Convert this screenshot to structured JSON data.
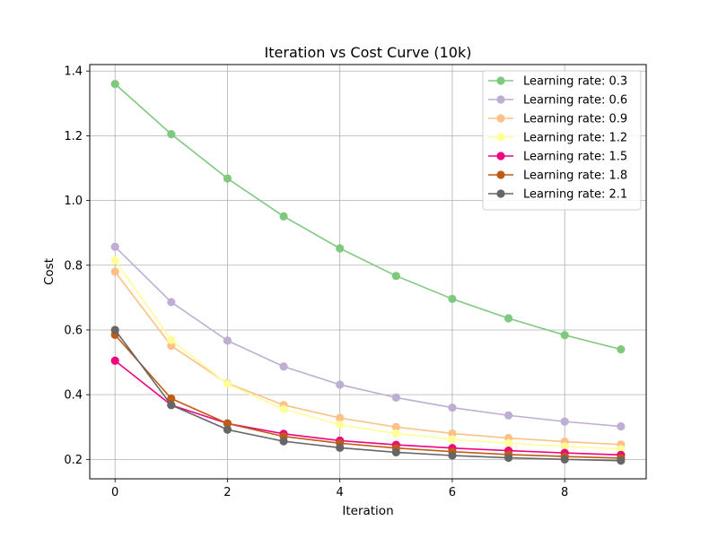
{
  "chart_data": {
    "type": "line",
    "title": "Iteration vs Cost Curve (10k)",
    "xlabel": "Iteration",
    "ylabel": "Cost",
    "x": [
      0,
      1,
      2,
      3,
      4,
      5,
      6,
      7,
      8,
      9
    ],
    "xlim": [
      -0.45,
      9.45
    ],
    "ylim": [
      0.14,
      1.42
    ],
    "xticks": [
      "0",
      "2",
      "4",
      "6",
      "8"
    ],
    "xtick_values": [
      0,
      2,
      4,
      6,
      8
    ],
    "yticks": [
      "0.2",
      "0.4",
      "0.6",
      "0.8",
      "1.0",
      "1.2",
      "1.4"
    ],
    "ytick_values": [
      0.2,
      0.4,
      0.6,
      0.8,
      1.0,
      1.2,
      1.4
    ],
    "grid": true,
    "legend_position": "top-right",
    "series": [
      {
        "name": "Learning rate: 0.3",
        "color": "#7fc97f",
        "values": [
          1.36,
          1.205,
          1.068,
          0.951,
          0.852,
          0.767,
          0.696,
          0.636,
          0.584,
          0.54
        ]
      },
      {
        "name": "Learning rate: 0.6",
        "color": "#beaed4",
        "values": [
          0.857,
          0.686,
          0.567,
          0.487,
          0.431,
          0.391,
          0.36,
          0.336,
          0.317,
          0.302
        ]
      },
      {
        "name": "Learning rate: 0.9",
        "color": "#fdc086",
        "values": [
          0.78,
          0.551,
          0.435,
          0.368,
          0.328,
          0.3,
          0.28,
          0.266,
          0.255,
          0.246
        ]
      },
      {
        "name": "Learning rate: 1.2",
        "color": "#ffff99",
        "values": [
          0.815,
          0.569,
          0.433,
          0.355,
          0.307,
          0.28,
          0.262,
          0.25,
          0.24,
          0.232
        ]
      },
      {
        "name": "Learning rate: 1.5",
        "color": "#f0027f",
        "values": [
          0.505,
          0.368,
          0.311,
          0.279,
          0.258,
          0.245,
          0.235,
          0.227,
          0.22,
          0.214
        ]
      },
      {
        "name": "Learning rate: 1.8",
        "color": "#bf5b17",
        "values": [
          0.585,
          0.388,
          0.311,
          0.271,
          0.25,
          0.235,
          0.224,
          0.215,
          0.209,
          0.204
        ]
      },
      {
        "name": "Learning rate: 2.1",
        "color": "#666666",
        "values": [
          0.6,
          0.368,
          0.292,
          0.256,
          0.236,
          0.222,
          0.212,
          0.205,
          0.2,
          0.196
        ]
      }
    ]
  }
}
